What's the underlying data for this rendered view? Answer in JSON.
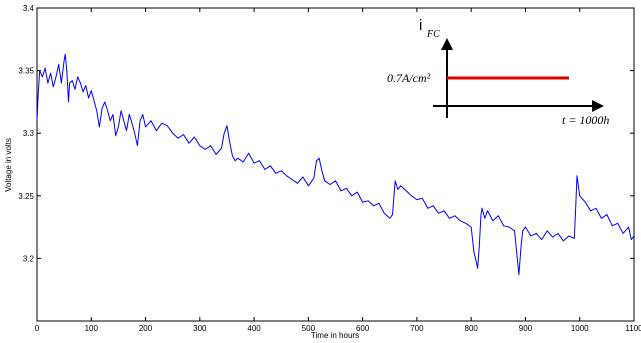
{
  "chart_data": {
    "type": "line",
    "title": "",
    "xlabel": "Time in hours",
    "ylabel": "Voltage in volts",
    "xlim": [
      0,
      1100
    ],
    "ylim": [
      3.15,
      3.4
    ],
    "x_ticks": [
      "0",
      "100",
      "200",
      "300",
      "400",
      "500",
      "600",
      "700",
      "800",
      "900",
      "1000",
      "1100"
    ],
    "y_ticks": [
      "3.2",
      "3.25",
      "3.3",
      "3.35",
      "3.4"
    ],
    "grid": false,
    "line_color": "#0000ff",
    "series": [
      {
        "x": [
          0,
          2,
          5,
          10,
          15,
          20,
          25,
          30,
          35,
          40,
          45,
          50,
          52,
          55,
          58,
          60,
          65,
          70,
          75,
          80,
          85,
          90,
          95,
          100,
          105,
          110,
          115,
          120,
          125,
          130,
          135,
          140,
          145,
          150,
          155,
          160,
          165,
          170,
          175,
          180,
          185,
          190,
          195,
          200,
          210,
          220,
          230,
          240,
          250,
          260,
          270,
          280,
          290,
          300,
          310,
          320,
          330,
          340,
          345,
          350,
          355,
          360,
          365,
          370,
          380,
          390,
          400,
          410,
          420,
          430,
          440,
          450,
          460,
          470,
          480,
          490,
          500,
          510,
          515,
          520,
          525,
          530,
          540,
          550,
          560,
          570,
          580,
          590,
          600,
          610,
          620,
          630,
          640,
          650,
          655,
          660,
          665,
          670,
          680,
          690,
          700,
          710,
          720,
          730,
          740,
          750,
          760,
          770,
          780,
          790,
          800,
          805,
          808,
          812,
          815,
          818,
          820,
          825,
          830,
          840,
          850,
          860,
          870,
          880,
          885,
          888,
          892,
          895,
          900,
          910,
          920,
          930,
          940,
          950,
          960,
          970,
          980,
          990,
          992,
          995,
          1000,
          1010,
          1020,
          1030,
          1040,
          1050,
          1060,
          1070,
          1080,
          1090,
          1095,
          1100
        ],
        "values": [
          3.31,
          3.33,
          3.35,
          3.345,
          3.352,
          3.34,
          3.348,
          3.337,
          3.345,
          3.355,
          3.34,
          3.358,
          3.363,
          3.35,
          3.325,
          3.34,
          3.342,
          3.335,
          3.345,
          3.34,
          3.333,
          3.338,
          3.328,
          3.334,
          3.326,
          3.318,
          3.305,
          3.32,
          3.325,
          3.318,
          3.31,
          3.315,
          3.298,
          3.305,
          3.318,
          3.31,
          3.302,
          3.315,
          3.308,
          3.3,
          3.29,
          3.31,
          3.315,
          3.305,
          3.31,
          3.302,
          3.308,
          3.306,
          3.3,
          3.296,
          3.299,
          3.292,
          3.297,
          3.29,
          3.287,
          3.29,
          3.283,
          3.288,
          3.3,
          3.306,
          3.293,
          3.282,
          3.278,
          3.28,
          3.277,
          3.284,
          3.276,
          3.278,
          3.271,
          3.274,
          3.268,
          3.27,
          3.266,
          3.263,
          3.26,
          3.265,
          3.258,
          3.264,
          3.278,
          3.28,
          3.27,
          3.262,
          3.259,
          3.262,
          3.254,
          3.256,
          3.25,
          3.253,
          3.245,
          3.246,
          3.242,
          3.244,
          3.236,
          3.232,
          3.235,
          3.262,
          3.255,
          3.258,
          3.254,
          3.25,
          3.247,
          3.248,
          3.24,
          3.242,
          3.236,
          3.238,
          3.232,
          3.234,
          3.23,
          3.228,
          3.225,
          3.205,
          3.2,
          3.192,
          3.21,
          3.235,
          3.24,
          3.232,
          3.238,
          3.23,
          3.234,
          3.226,
          3.225,
          3.222,
          3.2,
          3.187,
          3.21,
          3.222,
          3.225,
          3.218,
          3.22,
          3.215,
          3.222,
          3.217,
          3.22,
          3.214,
          3.218,
          3.216,
          3.235,
          3.266,
          3.25,
          3.245,
          3.238,
          3.24,
          3.232,
          3.235,
          3.226,
          3.228,
          3.22,
          3.225,
          3.215,
          3.218
        ]
      }
    ],
    "inset": {
      "current_label": "i",
      "current_subscript": "FC",
      "level_label": "0.7A/cm²",
      "time_label": "t = 1000h",
      "level_color": "#dd0000"
    }
  }
}
